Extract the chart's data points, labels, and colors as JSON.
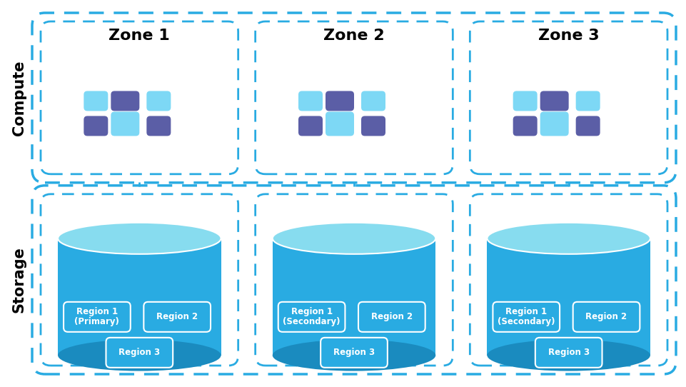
{
  "background_color": "#ffffff",
  "zone_titles": [
    "Zone 1",
    "Zone 2",
    "Zone 3"
  ],
  "zone_label_compute": "Compute",
  "zone_label_storage": "Storage",
  "dashed_color": "#29ABE2",
  "cylinder_color_body": "#29ABE2",
  "cylinder_color_top": "#87DCEF",
  "cylinder_color_dark": "#1A8BBF",
  "region_box_color": "#29ABE2",
  "region_box_edge": "#ffffff",
  "region_text_color": "#ffffff",
  "compute_box_light": "#7DD8F5",
  "compute_box_dark": "#5B5EA6",
  "zone1_regions": [
    [
      "Region 1",
      "(Primary)"
    ],
    [
      "Region 2"
    ],
    [
      "Region 3"
    ]
  ],
  "zone2_regions": [
    [
      "Region 1",
      "(Secondary)"
    ],
    [
      "Region 2"
    ],
    [
      "Region 3"
    ]
  ],
  "zone3_regions": [
    [
      "Region 1",
      "(Secondary)"
    ],
    [
      "Region 2"
    ],
    [
      "Region 3"
    ]
  ],
  "title_fontsize": 16,
  "label_fontsize": 15,
  "region_fontsize": 9
}
